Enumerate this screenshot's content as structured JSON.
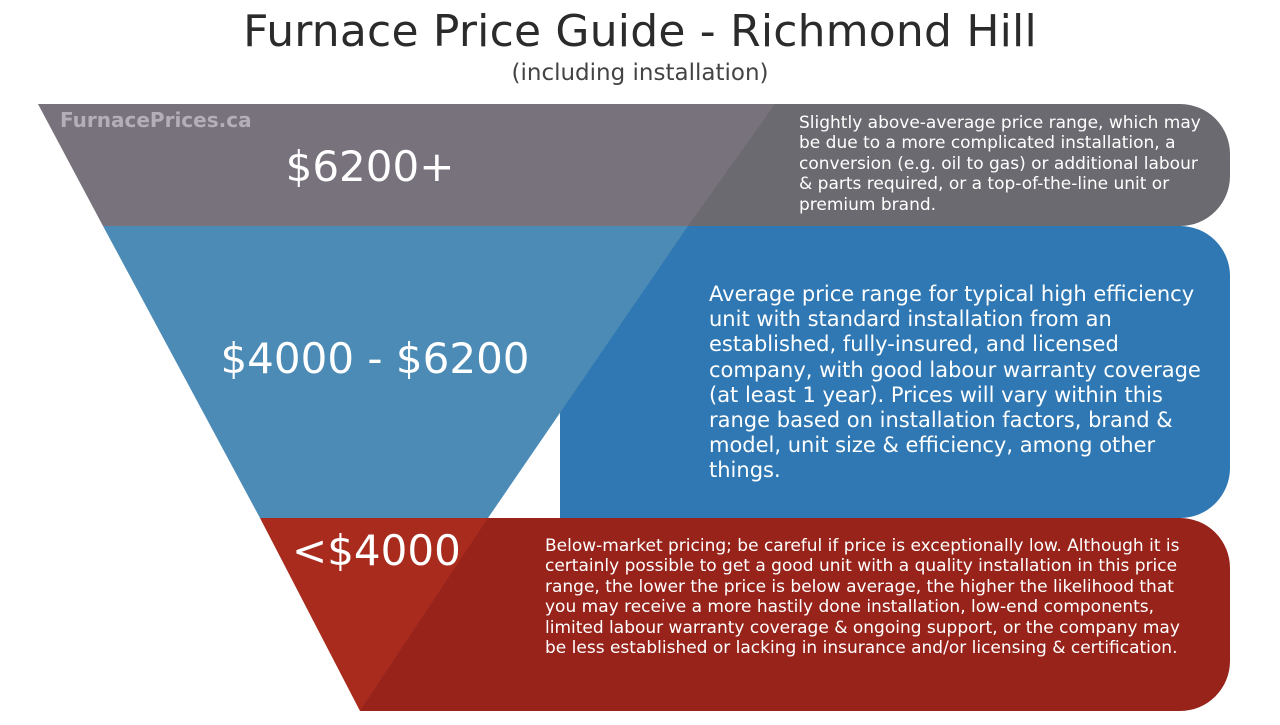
{
  "title": "Furnace Price Guide - Richmond Hill",
  "subtitle": "(including installation)",
  "watermark": "FurnacePrices.ca",
  "colors": {
    "top_funnel": "#78727c",
    "top_band": "#6b6a70",
    "mid_funnel": "#4b8bb5",
    "mid_band": "#2f78b3",
    "low_funnel": "#a82b1d",
    "low_band": "#97231b"
  },
  "tiers": [
    {
      "price": "$6200+",
      "description": "Slightly above-average price range, which may be due to a more complicated installation, a conversion (e.g. oil to gas) or additional labour & parts required, or a top-of-the-line unit or premium brand."
    },
    {
      "price": "$4000 - $6200",
      "description": "Average price range for typical high efficiency unit with standard installation from an established, fully-insured, and licensed company, with good labour warranty coverage (at least 1 year). Prices will vary within this range based on installation factors, brand & model, unit size & efficiency, among other things."
    },
    {
      "price": "<$4000",
      "description": "Below-market pricing; be careful if price is exceptionally low. Although it is certainly possible to get a good unit with a quality installation in this price range, the lower the price is below average, the higher the likelihood that you may receive a more hastily done installation, low-end components, limited labour warranty coverage & ongoing support, or the company may be less established or lacking in insurance and/or licensing & certification."
    }
  ]
}
